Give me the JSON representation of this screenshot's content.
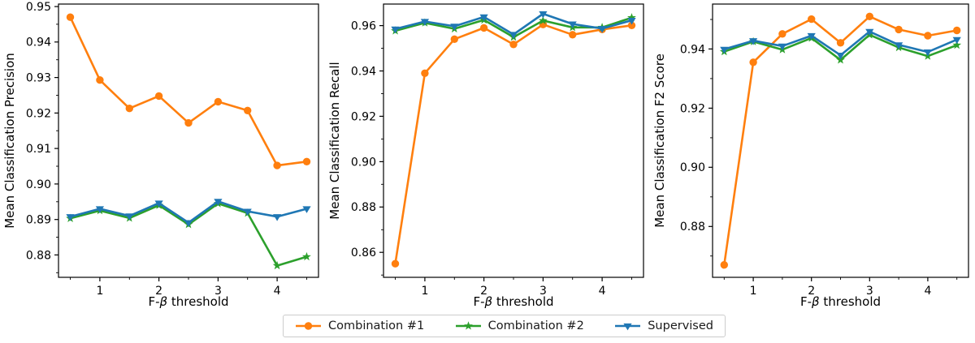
{
  "figure": {
    "background": "#ffffff"
  },
  "legend": {
    "border_color": "#cccccc",
    "background": "#ffffff",
    "items": [
      {
        "label": "Combination #1",
        "color": "#ff7f0e",
        "marker": "circle"
      },
      {
        "label": "Combination #2",
        "color": "#2ca02c",
        "marker": "star"
      },
      {
        "label": "Supervised",
        "color": "#1f77b4",
        "marker": "triangle-down"
      }
    ]
  },
  "chart_data": [
    {
      "type": "line",
      "title": "",
      "xlabel": "F-β threshold",
      "ylabel": "Mean Classification Precision",
      "x": [
        0.5,
        1.0,
        1.5,
        2.0,
        2.5,
        3.0,
        3.5,
        4.0,
        4.5
      ],
      "xlim": [
        0.3,
        4.7
      ],
      "ylim": [
        0.8737,
        0.9507
      ],
      "xticks": [
        1,
        2,
        3,
        4
      ],
      "yticks": [
        0.88,
        0.89,
        0.9,
        0.91,
        0.92,
        0.93,
        0.94,
        0.95
      ],
      "grid": false,
      "legend_position": "below-figure",
      "series": [
        {
          "name": "Combination #1",
          "color": "#ff7f0e",
          "marker": "circle",
          "values": [
            0.947,
            0.9293,
            0.9213,
            0.9248,
            0.9172,
            0.9232,
            0.9207,
            0.9052,
            0.9063
          ]
        },
        {
          "name": "Combination #2",
          "color": "#2ca02c",
          "marker": "star",
          "values": [
            0.8903,
            0.8925,
            0.8904,
            0.894,
            0.8886,
            0.8945,
            0.8918,
            0.877,
            0.8795
          ]
        },
        {
          "name": "Supervised",
          "color": "#1f77b4",
          "marker": "triangle-down",
          "values": [
            0.8908,
            0.893,
            0.891,
            0.8946,
            0.8891,
            0.8951,
            0.8923,
            0.8908,
            0.893
          ]
        }
      ]
    },
    {
      "type": "line",
      "title": "",
      "xlabel": "F-β threshold",
      "ylabel": "Mean Classification Recall",
      "x": [
        0.5,
        1.0,
        1.5,
        2.0,
        2.5,
        3.0,
        3.5,
        4.0,
        4.5
      ],
      "xlim": [
        0.3,
        4.7
      ],
      "ylim": [
        0.849,
        0.9695
      ],
      "xticks": [
        1,
        2,
        3,
        4
      ],
      "yticks": [
        0.86,
        0.88,
        0.9,
        0.92,
        0.94,
        0.96
      ],
      "grid": false,
      "legend_position": "below-figure",
      "series": [
        {
          "name": "Combination #1",
          "color": "#ff7f0e",
          "marker": "circle",
          "values": [
            0.855,
            0.939,
            0.954,
            0.959,
            0.9517,
            0.9605,
            0.956,
            0.9583,
            0.9601
          ]
        },
        {
          "name": "Combination #2",
          "color": "#2ca02c",
          "marker": "star",
          "values": [
            0.9577,
            0.9612,
            0.9586,
            0.9625,
            0.9549,
            0.9622,
            0.9592,
            0.9592,
            0.9635
          ]
        },
        {
          "name": "Supervised",
          "color": "#1f77b4",
          "marker": "triangle-down",
          "values": [
            0.9585,
            0.9618,
            0.9597,
            0.9638,
            0.9561,
            0.9652,
            0.9607,
            0.9587,
            0.9623
          ]
        }
      ]
    },
    {
      "type": "line",
      "title": "",
      "xlabel": "F-β threshold",
      "ylabel": "Mean Classification F2 Score",
      "x": [
        0.5,
        1.0,
        1.5,
        2.0,
        2.5,
        3.0,
        3.5,
        4.0,
        4.5
      ],
      "xlim": [
        0.3,
        4.7
      ],
      "ylim": [
        0.8628,
        0.9552
      ],
      "xticks": [
        1,
        2,
        3,
        4
      ],
      "yticks": [
        0.88,
        0.9,
        0.92,
        0.94
      ],
      "grid": false,
      "legend_position": "below-figure",
      "series": [
        {
          "name": "Combination #1",
          "color": "#ff7f0e",
          "marker": "circle",
          "values": [
            0.867,
            0.9355,
            0.9451,
            0.9501,
            0.9421,
            0.951,
            0.9466,
            0.9445,
            0.9463
          ]
        },
        {
          "name": "Combination #2",
          "color": "#2ca02c",
          "marker": "star",
          "values": [
            0.9391,
            0.9425,
            0.9398,
            0.9437,
            0.9363,
            0.9448,
            0.9405,
            0.9376,
            0.9413
          ]
        },
        {
          "name": "Supervised",
          "color": "#1f77b4",
          "marker": "triangle-down",
          "values": [
            0.9399,
            0.9428,
            0.941,
            0.9445,
            0.9379,
            0.9459,
            0.9414,
            0.939,
            0.9432
          ]
        }
      ]
    }
  ]
}
